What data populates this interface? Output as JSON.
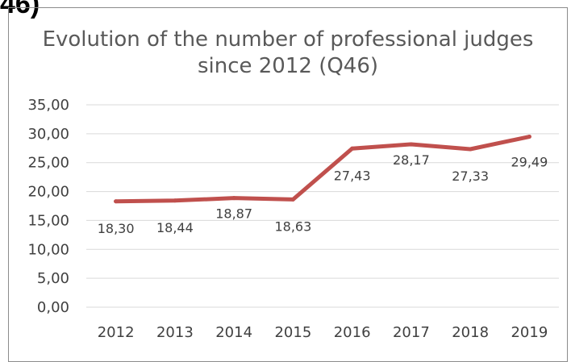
{
  "header_fragment": "46)",
  "chart_data": {
    "type": "line",
    "title": "Evolution of the number of professional judges since 2012 (Q46)",
    "title_lines": [
      "Evolution of the number of professional judges",
      "since 2012 (Q46)"
    ],
    "categories": [
      "2012",
      "2013",
      "2014",
      "2015",
      "2016",
      "2017",
      "2018",
      "2019"
    ],
    "series": [
      {
        "values": [
          18.3,
          18.44,
          18.87,
          18.63,
          27.43,
          28.17,
          27.33,
          29.49
        ],
        "labels": [
          "18,30",
          "18,44",
          "18,87",
          "18,63",
          "27,43",
          "28,17",
          "27,33",
          "29,49"
        ],
        "color": "#c0504d"
      }
    ],
    "ylim": [
      0,
      35
    ],
    "yticks": [
      "0,00",
      "5,00",
      "10,00",
      "15,00",
      "20,00",
      "25,00",
      "30,00",
      "35,00"
    ],
    "grid": true,
    "gridColor": "#d9d9d9",
    "legend": "none"
  }
}
